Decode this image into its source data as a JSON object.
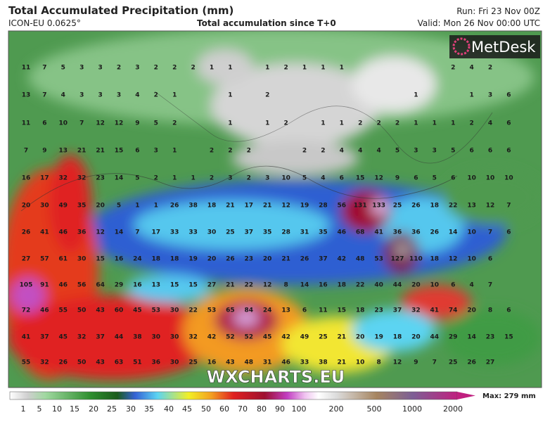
{
  "header": {
    "title": "Total Accumulated Precipitation (mm)",
    "model": "ICON-EU 0.0625°",
    "subtitle": "Total accumulation since T+0",
    "run": "Run: Fri 23 Nov 00Z",
    "valid": "Valid: Mon 26 Nov 00:00 UTC"
  },
  "map": {
    "logo": "MetDesk",
    "watermark": "WXCHARTS.EU",
    "grid": [
      [
        11,
        7,
        5,
        3,
        3,
        2,
        3,
        2,
        2,
        2,
        1,
        1,
        null,
        1,
        2,
        1,
        1,
        1,
        null,
        null,
        null,
        null,
        null,
        2,
        4,
        2,
        null
      ],
      [
        13,
        7,
        4,
        3,
        3,
        3,
        4,
        2,
        1,
        null,
        null,
        1,
        null,
        2,
        null,
        null,
        null,
        null,
        null,
        null,
        null,
        1,
        null,
        null,
        1,
        3,
        6
      ],
      [
        11,
        6,
        10,
        7,
        12,
        12,
        9,
        5,
        2,
        null,
        null,
        1,
        null,
        1,
        2,
        null,
        1,
        1,
        2,
        2,
        2,
        1,
        1,
        1,
        2,
        4,
        6
      ],
      [
        7,
        9,
        13,
        21,
        21,
        15,
        6,
        3,
        1,
        null,
        2,
        2,
        2,
        null,
        null,
        2,
        2,
        4,
        4,
        4,
        5,
        3,
        3,
        5,
        6,
        6,
        6
      ],
      [
        16,
        17,
        32,
        32,
        23,
        14,
        5,
        2,
        1,
        1,
        2,
        3,
        2,
        3,
        10,
        5,
        4,
        6,
        15,
        12,
        9,
        6,
        5,
        6,
        10,
        10,
        10
      ],
      [
        20,
        30,
        49,
        35,
        20,
        5,
        1,
        1,
        26,
        38,
        18,
        21,
        17,
        21,
        12,
        19,
        28,
        56,
        131,
        133,
        25,
        26,
        18,
        22,
        13,
        12,
        7
      ],
      [
        26,
        41,
        46,
        36,
        12,
        14,
        7,
        17,
        33,
        33,
        30,
        25,
        37,
        35,
        28,
        31,
        35,
        46,
        68,
        41,
        36,
        36,
        26,
        14,
        10,
        7,
        6
      ],
      [
        27,
        57,
        61,
        30,
        15,
        16,
        24,
        18,
        18,
        19,
        20,
        26,
        23,
        20,
        21,
        26,
        37,
        42,
        48,
        53,
        127,
        110,
        18,
        12,
        10,
        6,
        null
      ],
      [
        105,
        91,
        46,
        56,
        64,
        29,
        16,
        13,
        15,
        15,
        27,
        21,
        22,
        12,
        8,
        14,
        16,
        18,
        22,
        40,
        44,
        20,
        10,
        6,
        4,
        7,
        null
      ],
      [
        72,
        46,
        55,
        50,
        43,
        60,
        45,
        53,
        30,
        22,
        53,
        65,
        84,
        24,
        13,
        6,
        11,
        15,
        18,
        23,
        37,
        32,
        41,
        74,
        20,
        8,
        6
      ],
      [
        41,
        37,
        45,
        32,
        37,
        44,
        38,
        30,
        30,
        32,
        42,
        52,
        52,
        45,
        42,
        49,
        25,
        21,
        20,
        19,
        18,
        20,
        44,
        29,
        14,
        23,
        15
      ],
      [
        55,
        32,
        26,
        50,
        43,
        63,
        51,
        36,
        30,
        25,
        16,
        43,
        48,
        31,
        46,
        33,
        38,
        21,
        10,
        8,
        12,
        9,
        7,
        25,
        26,
        27,
        null
      ]
    ]
  },
  "legend": {
    "labels": [
      1,
      5,
      10,
      15,
      20,
      25,
      30,
      35,
      40,
      45,
      50,
      60,
      70,
      80,
      90,
      100,
      200,
      500,
      1000,
      2000
    ],
    "max": "Max: 279 mm"
  }
}
